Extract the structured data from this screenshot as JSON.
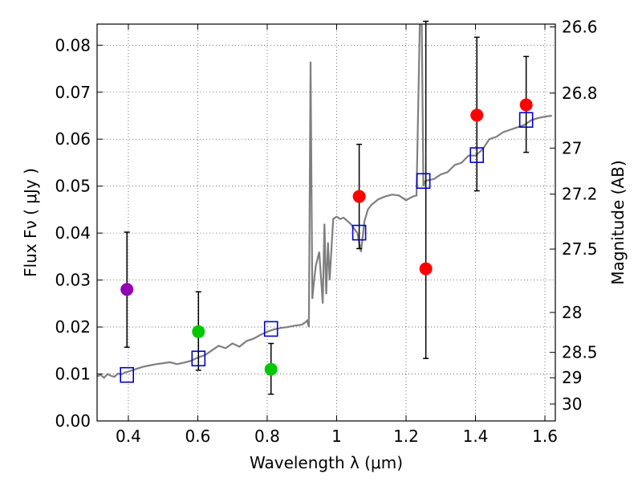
{
  "chart_data": {
    "type": "scatter",
    "xlabel": "Wavelength  λ (μm)",
    "ylabel": "Flux  Fν  ( μJy )",
    "y2label": "Magnitude (AB)",
    "xlim": [
      0.31,
      1.63
    ],
    "ylim": [
      0.0,
      0.0845
    ],
    "grid": true,
    "x_ticks": [
      0.4,
      0.6,
      0.8,
      1.0,
      1.2,
      1.4,
      1.6
    ],
    "x_tick_labels": [
      "0.4",
      "0.6",
      "0.8",
      "1",
      "1.2",
      "1.4",
      "1.6"
    ],
    "y_ticks": [
      0.0,
      0.01,
      0.02,
      0.03,
      0.04,
      0.05,
      0.06,
      0.07,
      0.08
    ],
    "y_tick_labels": [
      "0.00",
      "0.01",
      "0.02",
      "0.03",
      "0.04",
      "0.05",
      "0.06",
      "0.07",
      "0.08"
    ],
    "mag_ticks": [
      {
        "label": "26.6",
        "flux": 0.0839
      },
      {
        "label": "26.8",
        "flux": 0.0698
      },
      {
        "label": "27",
        "flux": 0.0581
      },
      {
        "label": "27.2",
        "flux": 0.0483
      },
      {
        "label": "27.5",
        "flux": 0.0366
      },
      {
        "label": "28",
        "flux": 0.0231
      },
      {
        "label": "28.5",
        "flux": 0.0146
      },
      {
        "label": "29",
        "flux": 0.0092
      },
      {
        "label": "30",
        "flux": 0.0036
      }
    ],
    "colors": {
      "model": "#7f7f7f",
      "model_points": "#0000cc",
      "errorbar": "#000000",
      "grid": "#555555"
    },
    "series": [
      {
        "name": "model spectrum",
        "kind": "line",
        "x": [
          0.31,
          0.32,
          0.33,
          0.34,
          0.35,
          0.36,
          0.37,
          0.38,
          0.39,
          0.4,
          0.42,
          0.44,
          0.46,
          0.48,
          0.5,
          0.52,
          0.54,
          0.56,
          0.58,
          0.6,
          0.62,
          0.64,
          0.66,
          0.68,
          0.7,
          0.72,
          0.74,
          0.76,
          0.78,
          0.8,
          0.82,
          0.84,
          0.86,
          0.88,
          0.9,
          0.91,
          0.915,
          0.92,
          0.925,
          0.93,
          0.935,
          0.94,
          0.95,
          0.96,
          0.965,
          0.97,
          0.975,
          0.98,
          0.99,
          1.0,
          1.01,
          1.02,
          1.04,
          1.06,
          1.07,
          1.08,
          1.09,
          1.1,
          1.12,
          1.14,
          1.16,
          1.18,
          1.2,
          1.22,
          1.23,
          1.24,
          1.245,
          1.25,
          1.255,
          1.26,
          1.28,
          1.3,
          1.32,
          1.34,
          1.36,
          1.38,
          1.4,
          1.42,
          1.44,
          1.46,
          1.48,
          1.5,
          1.52,
          1.54,
          1.56,
          1.58,
          1.6,
          1.62
        ],
        "y": [
          0.0095,
          0.0098,
          0.0092,
          0.01,
          0.0096,
          0.0094,
          0.0101,
          0.0099,
          0.0103,
          0.0105,
          0.011,
          0.0115,
          0.0118,
          0.0121,
          0.0123,
          0.0125,
          0.0121,
          0.0124,
          0.0128,
          0.0135,
          0.014,
          0.015,
          0.016,
          0.0155,
          0.0165,
          0.0158,
          0.017,
          0.0175,
          0.0183,
          0.019,
          0.0195,
          0.0198,
          0.02,
          0.0203,
          0.0205,
          0.021,
          0.0214,
          0.02,
          0.0765,
          0.026,
          0.03,
          0.033,
          0.036,
          0.025,
          0.042,
          0.027,
          0.038,
          0.03,
          0.043,
          0.0435,
          0.043,
          0.0433,
          0.042,
          0.04,
          0.036,
          0.0425,
          0.045,
          0.046,
          0.0472,
          0.0478,
          0.0482,
          0.048,
          0.047,
          0.0478,
          0.048,
          0.086,
          0.086,
          0.05,
          0.051,
          0.0512,
          0.0515,
          0.0525,
          0.053,
          0.0545,
          0.055,
          0.0565,
          0.0565,
          0.0578,
          0.06,
          0.0605,
          0.0615,
          0.062,
          0.0625,
          0.063,
          0.064,
          0.0645,
          0.0648,
          0.065
        ]
      },
      {
        "name": "model photometry",
        "kind": "open-square",
        "x": [
          0.396,
          0.602,
          0.811,
          1.065,
          1.25,
          1.404,
          1.546
        ],
        "y": [
          0.0098,
          0.0133,
          0.0196,
          0.0401,
          0.0511,
          0.0566,
          0.0641
        ]
      },
      {
        "name": "observed photometry",
        "kind": "point-errorbar",
        "x": [
          0.396,
          0.602,
          0.811,
          1.065,
          1.257,
          1.404,
          1.546
        ],
        "y": [
          0.028,
          0.019,
          0.011,
          0.0478,
          0.0324,
          0.0651,
          0.0673
        ],
        "yerr_low": [
          0.0157,
          0.0108,
          0.0057,
          0.0367,
          0.0133,
          0.049,
          0.0572
        ],
        "yerr_high": [
          0.0402,
          0.0275,
          0.0165,
          0.0589,
          0.0851,
          0.0817,
          0.0776
        ],
        "colors": [
          "#9400b4",
          "#00c800",
          "#00c800",
          "#ff0000",
          "#ff0000",
          "#ff0000",
          "#ff0000"
        ]
      }
    ]
  }
}
